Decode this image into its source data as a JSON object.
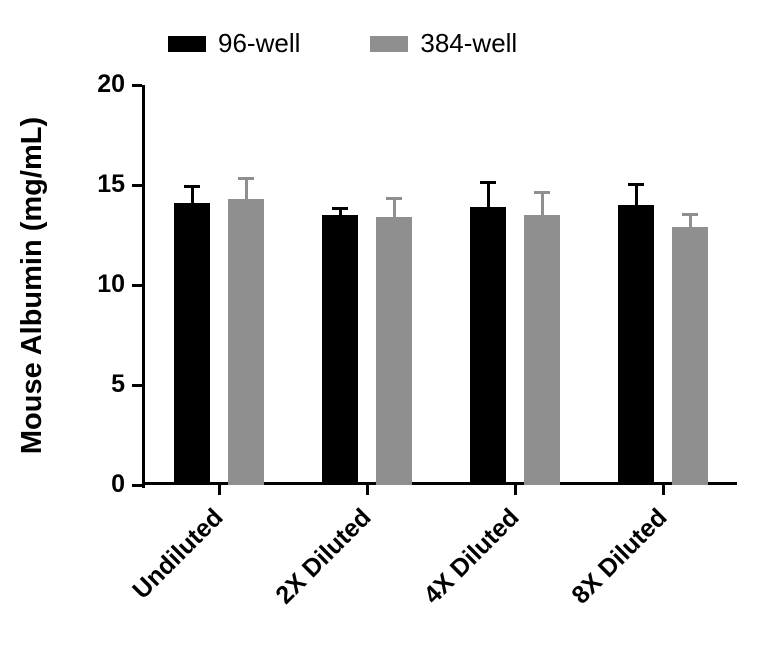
{
  "chart_data": {
    "type": "bar",
    "title": "",
    "xlabel": "",
    "ylabel": "Mouse Albumin (mg/mL)",
    "ylim": [
      0,
      20
    ],
    "yticks": [
      0,
      5,
      10,
      15,
      20
    ],
    "categories": [
      "Undiluted",
      "2X Diluted",
      "4X Diluted",
      "8X Diluted"
    ],
    "series": [
      {
        "name": "96-well",
        "color": "#000000",
        "values": [
          14.1,
          13.5,
          13.9,
          14.0
        ],
        "errors": [
          0.9,
          0.4,
          1.3,
          1.1
        ]
      },
      {
        "name": "384-well",
        "color": "#8f8f8f",
        "values": [
          14.3,
          13.4,
          13.5,
          12.9
        ],
        "errors": [
          1.1,
          1.0,
          1.2,
          0.7
        ]
      }
    ],
    "legend_position": "top",
    "grid": false,
    "error_bars": "upper"
  }
}
